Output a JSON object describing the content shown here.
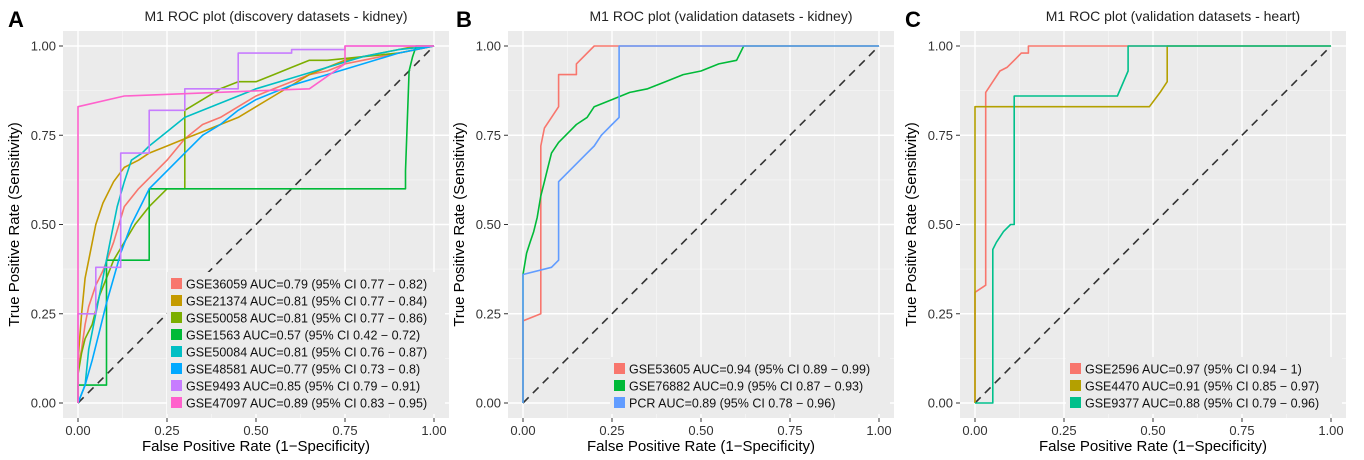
{
  "chart_data": [
    {
      "type": "line",
      "panel_label": "A",
      "title": "M1  ROC plot (discovery datasets - kidney)",
      "xlabel": "False Positive Rate (1−Specificity)",
      "ylabel": "True Positive Rate (Sensitivity)",
      "xlim": [
        0,
        1
      ],
      "ylim": [
        0,
        1
      ],
      "xticks": [
        "0.00",
        "0.25",
        "0.50",
        "0.75",
        "1.00"
      ],
      "yticks": [
        "0.00",
        "0.25",
        "0.50",
        "0.75",
        "1.00"
      ],
      "grid": true,
      "diagonal": true,
      "legend_position": "bottom-right",
      "series": [
        {
          "name": "GSE36059 AUC=0.79 (95% CI 0.77 − 0.82)",
          "color": "#F8766D",
          "x": [
            0,
            0,
            0.01,
            0.02,
            0.03,
            0.05,
            0.07,
            0.1,
            0.13,
            0.17,
            0.2,
            0.25,
            0.3,
            0.35,
            0.4,
            0.45,
            0.5,
            0.55,
            0.6,
            0.65,
            0.7,
            0.75,
            0.8,
            0.85,
            0.9,
            0.95,
            1
          ],
          "y": [
            0,
            0.1,
            0.15,
            0.22,
            0.27,
            0.33,
            0.37,
            0.45,
            0.55,
            0.6,
            0.63,
            0.68,
            0.74,
            0.78,
            0.8,
            0.83,
            0.86,
            0.88,
            0.9,
            0.92,
            0.93,
            0.95,
            0.96,
            0.97,
            0.98,
            0.99,
            1
          ]
        },
        {
          "name": "GSE21374 AUC=0.81 (95% CI 0.77 − 0.84)",
          "color": "#C49A00",
          "x": [
            0,
            0,
            0.01,
            0.02,
            0.03,
            0.05,
            0.07,
            0.1,
            0.13,
            0.17,
            0.2,
            0.25,
            0.3,
            0.35,
            0.4,
            0.45,
            0.5,
            0.55,
            0.6,
            0.65,
            0.7,
            0.75,
            0.8,
            0.85,
            0.9,
            0.95,
            1
          ],
          "y": [
            0,
            0.12,
            0.25,
            0.35,
            0.4,
            0.5,
            0.56,
            0.62,
            0.66,
            0.68,
            0.7,
            0.72,
            0.74,
            0.76,
            0.78,
            0.8,
            0.83,
            0.86,
            0.89,
            0.92,
            0.94,
            0.96,
            0.97,
            0.98,
            0.99,
            1,
            1
          ]
        },
        {
          "name": "GSE50058 AUC=0.81 (95% CI 0.77 − 0.86)",
          "color": "#7CAE00",
          "x": [
            0,
            0,
            0.01,
            0.02,
            0.04,
            0.06,
            0.08,
            0.1,
            0.13,
            0.16,
            0.2,
            0.25,
            0.3,
            0.3,
            0.35,
            0.4,
            0.45,
            0.5,
            0.55,
            0.6,
            0.65,
            0.7,
            0.8,
            0.9,
            1
          ],
          "y": [
            0,
            0.08,
            0.14,
            0.18,
            0.22,
            0.3,
            0.35,
            0.4,
            0.45,
            0.5,
            0.55,
            0.6,
            0.6,
            0.82,
            0.85,
            0.88,
            0.9,
            0.9,
            0.92,
            0.94,
            0.96,
            0.96,
            0.97,
            0.98,
            1
          ]
        },
        {
          "name": "GSE1563 AUC=0.57 (95% CI 0.42 − 0.72)",
          "color": "#00BA38",
          "x": [
            0,
            0,
            0.08,
            0.08,
            0.2,
            0.2,
            0.92,
            0.92,
            0.93,
            0.94,
            0.95,
            1
          ],
          "y": [
            0,
            0.05,
            0.05,
            0.4,
            0.4,
            0.6,
            0.6,
            0.65,
            0.93,
            0.97,
            1,
            1
          ]
        },
        {
          "name": "GSE50084 AUC=0.81 (95% CI 0.76 − 0.87)",
          "color": "#00BFC4",
          "x": [
            0,
            0.02,
            0.03,
            0.05,
            0.07,
            0.09,
            0.11,
            0.13,
            0.15,
            0.18,
            0.2,
            0.25,
            0.3,
            0.35,
            0.4,
            0.45,
            0.5,
            0.6,
            0.7,
            0.8,
            0.9,
            1
          ],
          "y": [
            0,
            0.05,
            0.15,
            0.25,
            0.35,
            0.45,
            0.55,
            0.62,
            0.68,
            0.7,
            0.72,
            0.76,
            0.8,
            0.82,
            0.84,
            0.86,
            0.88,
            0.91,
            0.94,
            0.97,
            0.99,
            1
          ]
        },
        {
          "name": "GSE48581 AUC=0.77 (95% CI 0.73 − 0.8)",
          "color": "#00A9FF",
          "x": [
            0,
            0.02,
            0.04,
            0.06,
            0.08,
            0.1,
            0.12,
            0.15,
            0.18,
            0.2,
            0.25,
            0.3,
            0.35,
            0.4,
            0.45,
            0.5,
            0.55,
            0.6,
            0.7,
            0.8,
            0.9,
            1
          ],
          "y": [
            0,
            0.05,
            0.12,
            0.2,
            0.28,
            0.35,
            0.42,
            0.5,
            0.56,
            0.6,
            0.65,
            0.7,
            0.75,
            0.78,
            0.82,
            0.85,
            0.87,
            0.89,
            0.92,
            0.95,
            0.98,
            1
          ]
        },
        {
          "name": "GSE9493 AUC=0.85 (95% CI 0.79 − 0.91)",
          "color": "#C77CFF",
          "x": [
            0,
            0,
            0.05,
            0.05,
            0.12,
            0.12,
            0.2,
            0.2,
            0.3,
            0.3,
            0.45,
            0.45,
            0.6,
            0.6,
            0.75,
            0.75,
            0.95,
            1
          ],
          "y": [
            0,
            0.25,
            0.25,
            0.38,
            0.38,
            0.7,
            0.7,
            0.82,
            0.82,
            0.88,
            0.88,
            0.98,
            0.98,
            0.99,
            0.99,
            1,
            1,
            1
          ]
        },
        {
          "name": "GSE47097 AUC=0.89 (95% CI 0.83 − 0.95)",
          "color": "#FF61CC",
          "x": [
            0,
            0,
            0.13,
            0.65,
            0.75,
            0.75,
            1
          ],
          "y": [
            0,
            0.83,
            0.86,
            0.88,
            0.95,
            1,
            1
          ]
        }
      ]
    },
    {
      "type": "line",
      "panel_label": "B",
      "title": "M1  ROC plot (validation datasets - kidney)",
      "xlabel": "False Positive Rate (1−Specificity)",
      "ylabel": "True Positive Rate (Sensitivity)",
      "xlim": [
        0,
        1
      ],
      "ylim": [
        0,
        1
      ],
      "xticks": [
        "0.00",
        "0.25",
        "0.50",
        "0.75",
        "1.00"
      ],
      "yticks": [
        "0.00",
        "0.25",
        "0.50",
        "0.75",
        "1.00"
      ],
      "grid": true,
      "diagonal": true,
      "legend_position": "bottom-right",
      "series": [
        {
          "name": "GSE53605 AUC=0.94 (95% CI 0.89 − 0.99)",
          "color": "#F8766D",
          "x": [
            0,
            0,
            0.05,
            0.05,
            0.06,
            0.06,
            0.08,
            0.1,
            0.1,
            0.13,
            0.15,
            0.15,
            0.2,
            0.25,
            1
          ],
          "y": [
            0,
            0.23,
            0.25,
            0.72,
            0.77,
            0.77,
            0.8,
            0.83,
            0.92,
            0.92,
            0.92,
            0.95,
            1,
            1,
            1
          ]
        },
        {
          "name": "GSE76882 AUC=0.9 (95% CI 0.87 − 0.93)",
          "color": "#00BA38",
          "x": [
            0,
            0,
            0.01,
            0.02,
            0.03,
            0.04,
            0.05,
            0.06,
            0.07,
            0.08,
            0.1,
            0.12,
            0.15,
            0.18,
            0.2,
            0.25,
            0.3,
            0.35,
            0.4,
            0.45,
            0.5,
            0.55,
            0.6,
            0.62,
            0.7,
            0.8,
            1
          ],
          "y": [
            0,
            0.36,
            0.42,
            0.45,
            0.48,
            0.52,
            0.58,
            0.62,
            0.66,
            0.7,
            0.73,
            0.75,
            0.78,
            0.8,
            0.83,
            0.85,
            0.87,
            0.88,
            0.9,
            0.92,
            0.93,
            0.95,
            0.96,
            1,
            1,
            1,
            1
          ]
        },
        {
          "name": "PCR AUC=0.89 (95% CI 0.78 − 0.96)",
          "color": "#619CFF",
          "x": [
            0,
            0,
            0.08,
            0.1,
            0.1,
            0.15,
            0.18,
            0.2,
            0.22,
            0.25,
            0.27,
            0.27,
            0.3,
            0.4,
            0.6,
            1
          ],
          "y": [
            0,
            0.36,
            0.38,
            0.4,
            0.62,
            0.67,
            0.7,
            0.72,
            0.75,
            0.78,
            0.8,
            1,
            1,
            1,
            1,
            1
          ]
        }
      ]
    },
    {
      "type": "line",
      "panel_label": "C",
      "title": "M1 ROC plot (validation datasets - heart)",
      "xlabel": "False Positive Rate (1−Specificity)",
      "ylabel": "True Positive Rate (Sensitivity)",
      "xlim": [
        0,
        1
      ],
      "ylim": [
        0,
        1
      ],
      "xticks": [
        "0.00",
        "0.25",
        "0.50",
        "0.75",
        "1.00"
      ],
      "yticks": [
        "0.00",
        "0.25",
        "0.50",
        "0.75",
        "1.00"
      ],
      "grid": true,
      "diagonal": true,
      "legend_position": "bottom-right",
      "series": [
        {
          "name": "GSE2596 AUC=0.97 (95% CI 0.94 − 1)",
          "color": "#F8766D",
          "x": [
            0,
            0,
            0.03,
            0.03,
            0.05,
            0.07,
            0.09,
            0.11,
            0.13,
            0.15,
            0.15,
            0.2,
            0.5,
            1
          ],
          "y": [
            0,
            0.31,
            0.33,
            0.87,
            0.9,
            0.93,
            0.94,
            0.96,
            0.98,
            0.98,
            1,
            1,
            1,
            1
          ]
        },
        {
          "name": "GSE4470 AUC=0.91 (95% CI 0.85 − 0.97)",
          "color": "#B4A000",
          "x": [
            0,
            0,
            0.49,
            0.52,
            0.54,
            0.54,
            1
          ],
          "y": [
            0,
            0.83,
            0.83,
            0.87,
            0.9,
            1,
            1
          ]
        },
        {
          "name": "GSE9377 AUC=0.88 (95% CI 0.79 − 0.96)",
          "color": "#00C08B",
          "x": [
            0,
            0.05,
            0.05,
            0.06,
            0.08,
            0.1,
            0.11,
            0.11,
            0.4,
            0.43,
            0.43,
            1
          ],
          "y": [
            0,
            0,
            0.43,
            0.45,
            0.48,
            0.5,
            0.5,
            0.86,
            0.86,
            0.93,
            1,
            1
          ]
        }
      ]
    }
  ]
}
